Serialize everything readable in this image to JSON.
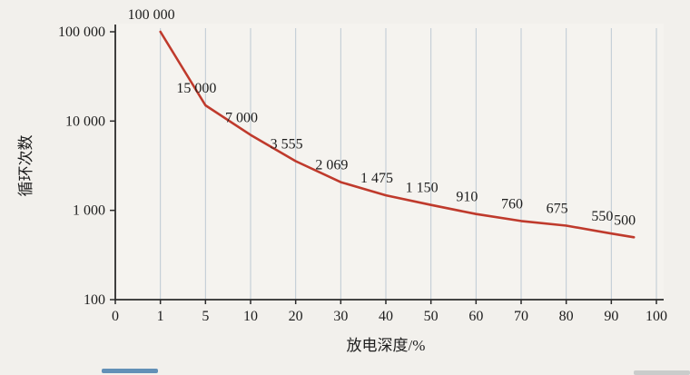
{
  "figure": {
    "background": "#f2f0ec",
    "plot_background": "#f5f3ef",
    "grid_color": "#bdc9d3",
    "axis_color": "#2b2b2b",
    "text_color": "#1d1d1d"
  },
  "chart_data": {
    "type": "line",
    "title": "",
    "xlabel": "放电深度/%",
    "ylabel": "循环次数",
    "x_tick_values": [
      0,
      1,
      5,
      10,
      20,
      30,
      40,
      50,
      60,
      70,
      80,
      90,
      100
    ],
    "x_tick_labels": [
      "0",
      "1",
      "5",
      "10",
      "20",
      "30",
      "40",
      "50",
      "60",
      "70",
      "80",
      "90",
      "100"
    ],
    "y_scale": "log",
    "ylim": [
      100,
      100000
    ],
    "y_tick_values": [
      100,
      1000,
      10000,
      100000
    ],
    "y_tick_labels": [
      "100",
      "1 000",
      "10 000",
      "100 000"
    ],
    "grid": "vertical",
    "line_color": "#bf3a2c",
    "x": [
      1,
      5,
      10,
      20,
      30,
      40,
      50,
      60,
      70,
      80,
      90,
      95
    ],
    "values": [
      100000,
      15000,
      7000,
      3555,
      2069,
      1475,
      1150,
      910,
      760,
      675,
      550,
      500
    ],
    "point_labels": [
      "100 000",
      "15 000",
      "7 000",
      "3 555",
      "2 069",
      "1 475",
      "1 150",
      "910",
      "760",
      "675",
      "550",
      "500"
    ]
  }
}
